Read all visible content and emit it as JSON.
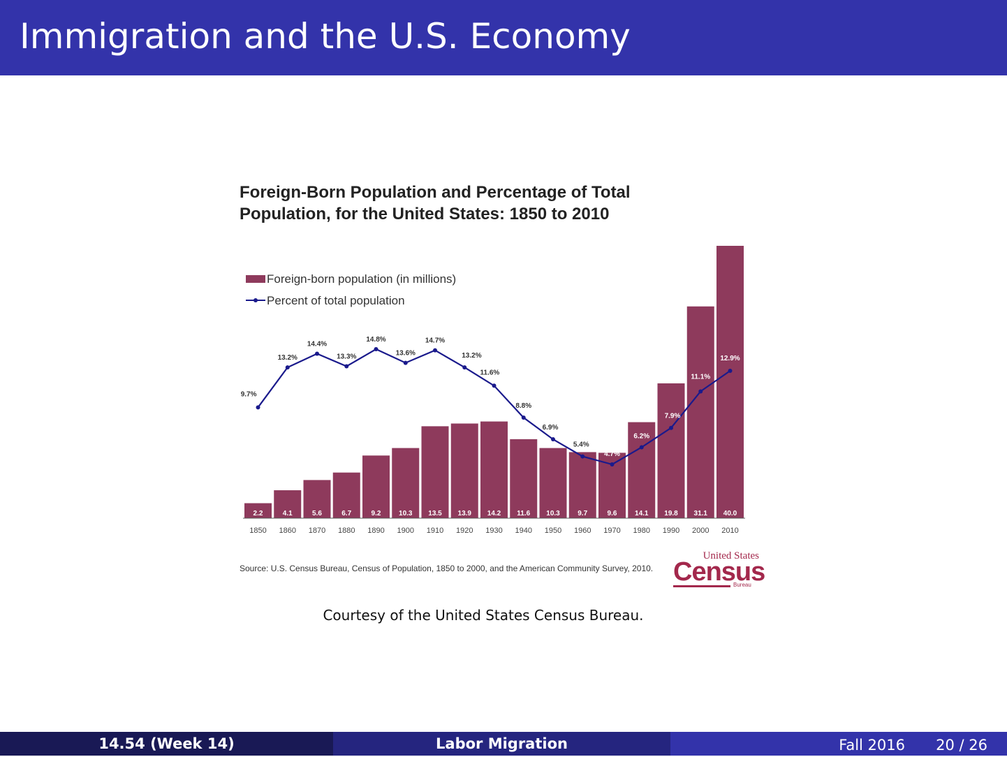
{
  "slide": {
    "title": "Immigration and the U.S. Economy",
    "caption": "Courtesy of the United States Census Bureau.",
    "footer": {
      "course": "14.54  (Week 14)",
      "topic": "Labor Migration",
      "term": "Fall 2016",
      "page": "20 / 26"
    }
  },
  "figure": {
    "title_line1": "Foreign-Born Population and Percentage of Total",
    "title_line2": "Population, for the United States: 1850 to 2010",
    "source": "Source: U.S. Census Bureau, Census of Population, 1850 to 2000, and the American Community Survey, 2010.",
    "logo": {
      "top": "United States",
      "main": "Census",
      "sub": "Bureau"
    }
  },
  "chart_data": {
    "type": "bar",
    "categories": [
      "1850",
      "1860",
      "1870",
      "1880",
      "1890",
      "1900",
      "1910",
      "1920",
      "1930",
      "1940",
      "1950",
      "1960",
      "1970",
      "1980",
      "1990",
      "2000",
      "2010"
    ],
    "series": [
      {
        "name": "Foreign-born population (in millions)",
        "type": "bar",
        "color": "#8e3a5c",
        "values": [
          2.2,
          4.1,
          5.6,
          6.7,
          9.2,
          10.3,
          13.5,
          13.9,
          14.2,
          11.6,
          10.3,
          9.7,
          9.6,
          14.1,
          19.8,
          31.1,
          40.0
        ],
        "labels": [
          "2.2",
          "4.1",
          "5.6",
          "6.7",
          "9.2",
          "10.3",
          "13.5",
          "13.9",
          "14.2",
          "11.6",
          "10.3",
          "9.7",
          "9.6",
          "14.1",
          "19.8",
          "31.1",
          "40.0"
        ]
      },
      {
        "name": "Percent of total population",
        "type": "line",
        "color": "#1a1a8c",
        "values": [
          9.7,
          13.2,
          14.4,
          13.3,
          14.8,
          13.6,
          14.7,
          13.2,
          11.6,
          8.8,
          6.9,
          5.4,
          4.7,
          6.2,
          7.9,
          11.1,
          12.9
        ],
        "labels": [
          "9.7%",
          "13.2%",
          "14.4%",
          "13.3%",
          "14.8%",
          "13.6%",
          "14.7%",
          "13.2%",
          "11.6%",
          "8.8%",
          "6.9%",
          "5.4%",
          "4.7%",
          "6.2%",
          "7.9%",
          "11.1%",
          "12.9%"
        ]
      }
    ],
    "legend_position": "top-left",
    "grid": false
  }
}
